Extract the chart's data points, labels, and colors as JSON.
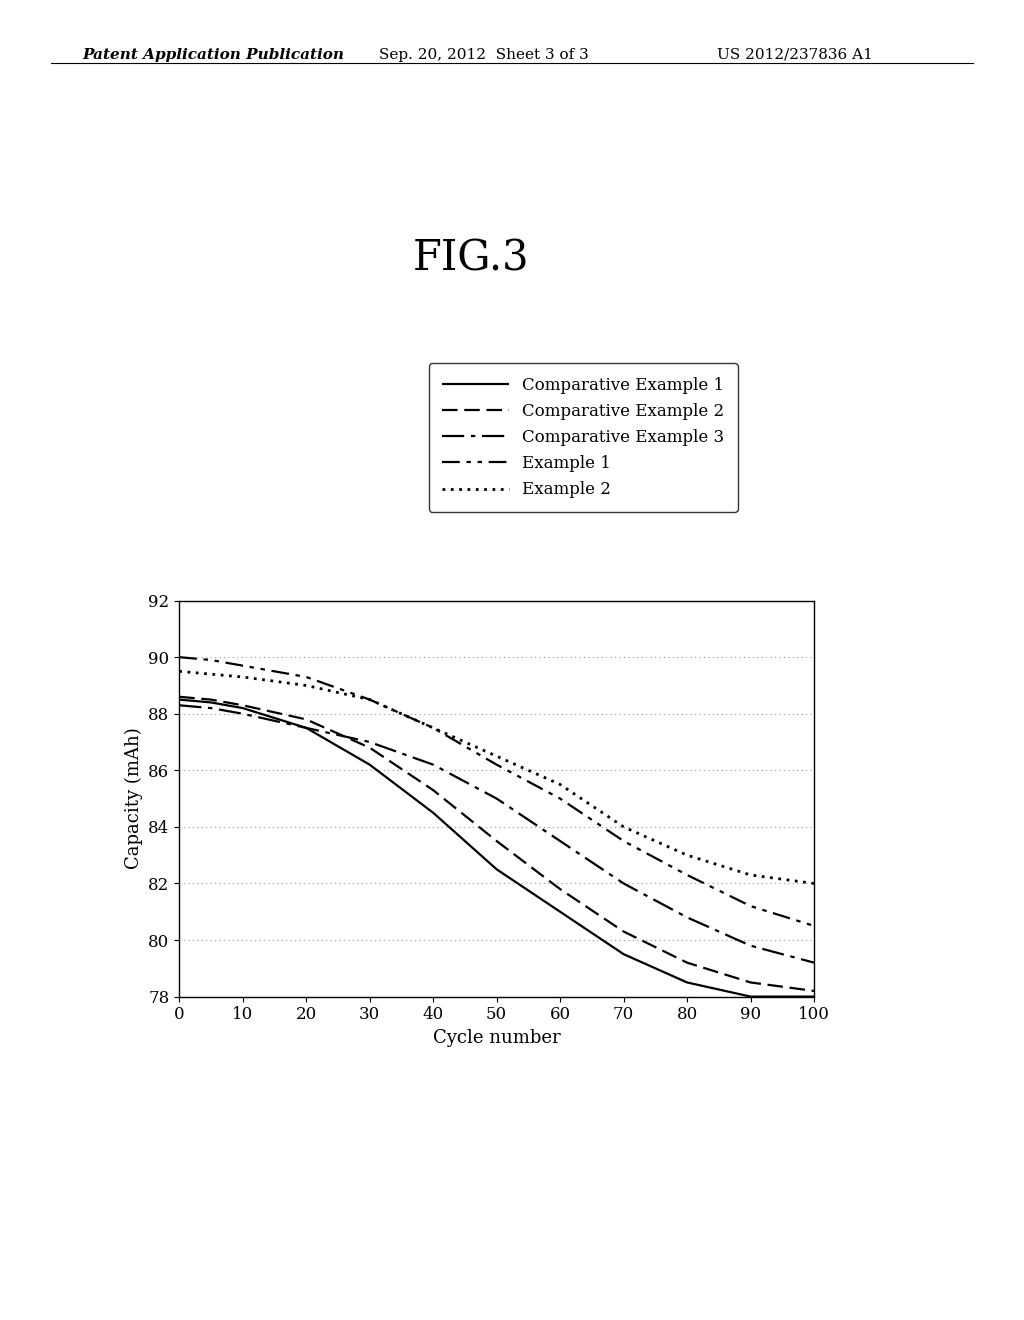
{
  "title": "FIG.3",
  "header_left": "Patent Application Publication",
  "header_center": "Sep. 20, 2012  Sheet 3 of 3",
  "header_right": "US 2012/237836 A1",
  "xlabel": "Cycle number",
  "ylabel": "Capacity (mAh)",
  "xlim": [
    0,
    100
  ],
  "ylim": [
    78,
    92
  ],
  "xticks": [
    0,
    10,
    20,
    30,
    40,
    50,
    60,
    70,
    80,
    90,
    100
  ],
  "yticks": [
    78,
    80,
    82,
    84,
    86,
    88,
    90,
    92
  ],
  "series": [
    {
      "label": "Comparative Example 1",
      "dashes": [
        6,
        0
      ],
      "linewidth": 1.6,
      "color": "#000000",
      "x": [
        0,
        5,
        10,
        20,
        30,
        40,
        50,
        60,
        70,
        80,
        90,
        100
      ],
      "y": [
        88.5,
        88.4,
        88.2,
        87.5,
        86.2,
        84.5,
        82.5,
        81.0,
        79.5,
        78.5,
        78.0,
        78.0
      ]
    },
    {
      "label": "Comparative Example 2",
      "dashes": [
        7,
        3
      ],
      "linewidth": 1.6,
      "color": "#000000",
      "x": [
        0,
        5,
        10,
        20,
        30,
        40,
        50,
        60,
        70,
        80,
        90,
        100
      ],
      "y": [
        88.6,
        88.5,
        88.3,
        87.8,
        86.8,
        85.3,
        83.5,
        81.8,
        80.3,
        79.2,
        78.5,
        78.2
      ]
    },
    {
      "label": "Comparative Example 3",
      "dashes": [
        10,
        3,
        2,
        3
      ],
      "linewidth": 1.6,
      "color": "#000000",
      "x": [
        0,
        5,
        10,
        20,
        30,
        40,
        50,
        60,
        70,
        80,
        90,
        100
      ],
      "y": [
        88.3,
        88.2,
        88.0,
        87.5,
        87.0,
        86.2,
        85.0,
        83.5,
        82.0,
        80.8,
        79.8,
        79.2
      ]
    },
    {
      "label": "Example 1",
      "dashes": [
        8,
        3,
        2,
        3,
        2,
        3
      ],
      "linewidth": 1.6,
      "color": "#000000",
      "x": [
        0,
        5,
        10,
        20,
        30,
        40,
        50,
        60,
        70,
        80,
        90,
        100
      ],
      "y": [
        90.0,
        89.9,
        89.7,
        89.3,
        88.5,
        87.5,
        86.2,
        85.0,
        83.5,
        82.3,
        81.2,
        80.5
      ]
    },
    {
      "label": "Example 2",
      "dashes": [
        1,
        2
      ],
      "linewidth": 2.0,
      "color": "#000000",
      "x": [
        0,
        5,
        10,
        20,
        30,
        40,
        50,
        60,
        70,
        80,
        90,
        100
      ],
      "y": [
        89.5,
        89.4,
        89.3,
        89.0,
        88.5,
        87.5,
        86.5,
        85.5,
        84.0,
        83.0,
        82.3,
        82.0
      ]
    }
  ],
  "background_color": "#ffffff",
  "grid_color": "#999999",
  "legend_fontsize": 12,
  "axis_fontsize": 13,
  "tick_fontsize": 12,
  "title_fontsize": 30
}
